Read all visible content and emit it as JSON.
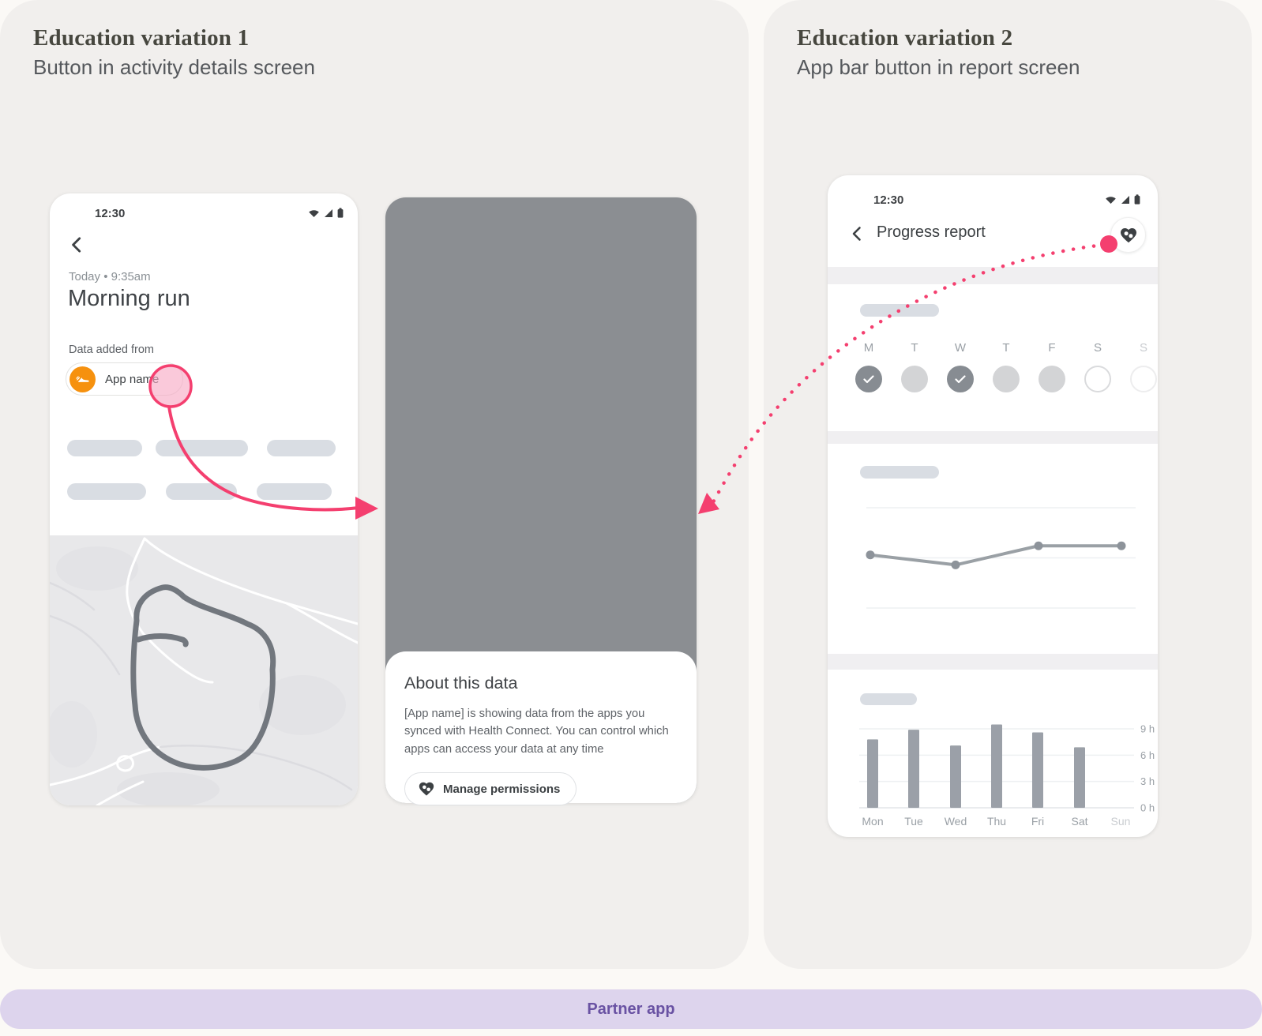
{
  "colors": {
    "accent_pink": "#F43F6F",
    "tap_fill_pink": "#F7A8C3",
    "app_icon_orange": "#F6910E",
    "partner_bar_lavender": "#DDD4ED",
    "partner_text_purple": "#6952A3",
    "scrim_gray": "#8B8E92",
    "panel_gray": "#F1EFED"
  },
  "panels": {
    "left": {
      "title": "Education variation 1",
      "subtitle": "Button in activity details screen"
    },
    "right": {
      "title": "Education variation 2",
      "subtitle": "App bar button in report screen"
    }
  },
  "phone1": {
    "status_time": "12:30",
    "timestamp": "Today • 9:35am",
    "title": "Morning run",
    "data_added_from": "Data added from",
    "app_chip_label": "App name"
  },
  "phone2": {
    "sheet_title": "About this data",
    "sheet_body": "[App name] is showing data from the apps you synced with Health Connect. You can control which apps can access your data at any time",
    "manage_button": "Manage permissions"
  },
  "phone3": {
    "status_time": "12:30",
    "app_bar_title": "Progress report",
    "week": {
      "days": [
        "M",
        "T",
        "W",
        "T",
        "F",
        "S",
        "S"
      ],
      "states": [
        "checked",
        "filled",
        "checked",
        "filled",
        "filled",
        "outline",
        "outline-faint"
      ]
    }
  },
  "footer": {
    "label": "Partner app"
  },
  "chart_data": [
    {
      "type": "line",
      "x": [
        1,
        2,
        3,
        4
      ],
      "values": [
        53,
        43,
        62,
        62
      ],
      "ylim": [
        0,
        100
      ],
      "gridlines": [
        0,
        50,
        100
      ],
      "title": "",
      "xlabel": "",
      "ylabel": ""
    },
    {
      "type": "bar",
      "categories": [
        "Mon",
        "Tue",
        "Wed",
        "Thu",
        "Fri",
        "Sat",
        "Sun"
      ],
      "values": [
        7.8,
        8.9,
        7.1,
        9.5,
        8.6,
        6.9,
        null
      ],
      "yticks": [
        "0 h",
        "3 h",
        "6 h",
        "9 h"
      ],
      "ylim": [
        0,
        10.5
      ],
      "title": "",
      "xlabel": "",
      "ylabel": ""
    }
  ]
}
